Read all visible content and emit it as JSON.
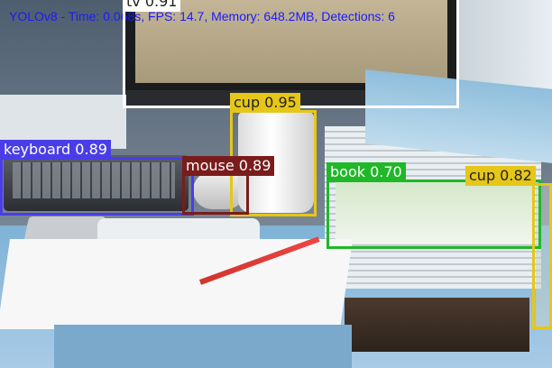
{
  "overlay": {
    "status_text": "YOLOv8 - Time: 0.068s, FPS: 14.7, Memory: 648.2MB, Detections: 6",
    "status_color": "#1a1aff"
  },
  "detections": [
    {
      "label": "tv 0.91",
      "class": "tv",
      "confidence": 0.91,
      "color": "#ffffff"
    },
    {
      "label": "cup 0.95",
      "class": "cup",
      "confidence": 0.95,
      "color": "#e6c619"
    },
    {
      "label": "keyboard 0.89",
      "class": "keyboard",
      "confidence": 0.89,
      "color": "#4a3de8"
    },
    {
      "label": "mouse 0.89",
      "class": "mouse",
      "confidence": 0.89,
      "color": "#7a1c1c"
    },
    {
      "label": "book 0.70",
      "class": "book",
      "confidence": 0.7,
      "color": "#20b828"
    },
    {
      "label": "cup 0.82",
      "class": "cup",
      "confidence": 0.82,
      "color": "#e6c619"
    }
  ]
}
